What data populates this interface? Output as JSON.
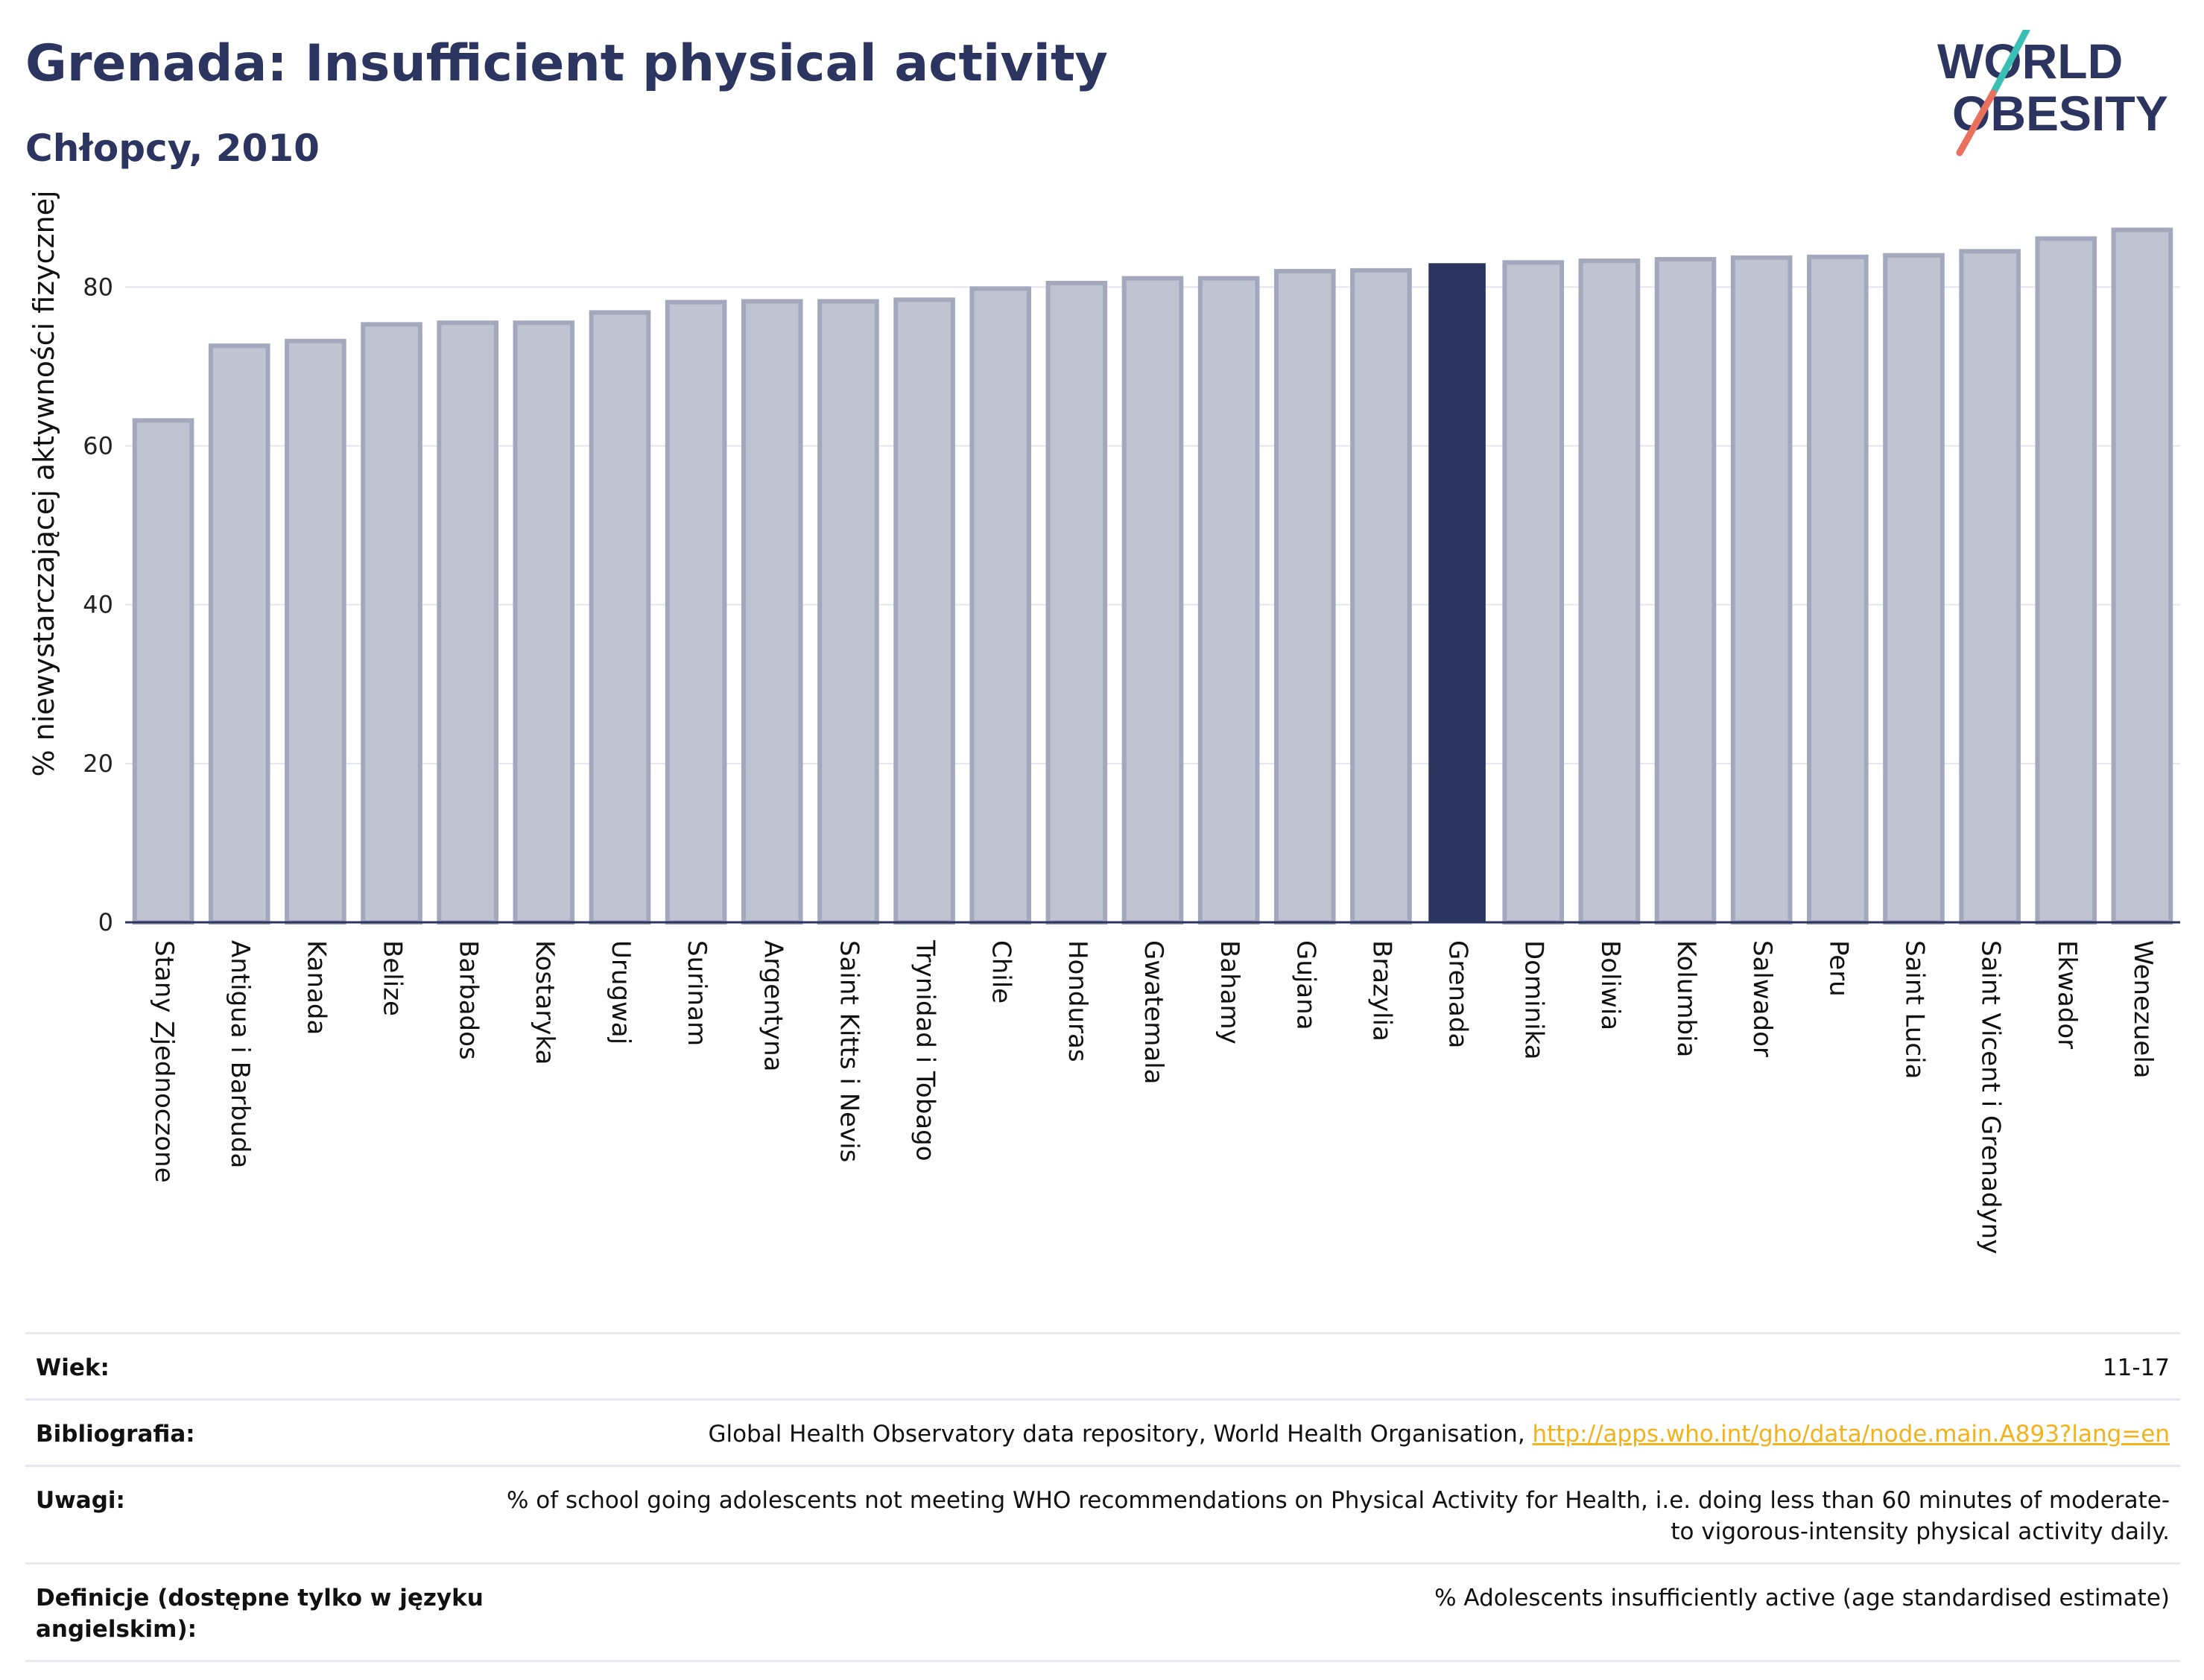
{
  "header": {
    "title": "Grenada: Insufficient physical activity",
    "subtitle": "Chłopcy, 2010"
  },
  "logo": {
    "line1": "WORLD",
    "line2": "OBESITY",
    "colors": {
      "text": "#2b3560",
      "slash_teal": "#3bbfb4",
      "slash_coral": "#e8705d"
    }
  },
  "colors": {
    "bar_default_fill": "#c0c3d1",
    "bar_default_stroke": "#a3a8bd",
    "bar_highlight": "#2b3560",
    "grid": "#e4e6ee",
    "axis": "#2b3560"
  },
  "chart_data": {
    "type": "bar",
    "title": "Grenada: Insufficient physical activity",
    "subtitle": "Chłopcy, 2010",
    "xlabel": "",
    "ylabel": "% niewystarczającej aktywności fizycznej",
    "ylim": [
      0,
      88
    ],
    "yticks": [
      0,
      20,
      40,
      60,
      80
    ],
    "grid": true,
    "highlight": "Grenada",
    "categories": [
      "Stany Zjednoczone",
      "Antigua i Barbuda",
      "Kanada",
      "Belize",
      "Barbados",
      "Kostaryka",
      "Urugwaj",
      "Surinam",
      "Argentyna",
      "Saint Kitts i Nevis",
      "Trynidad i Tobago",
      "Chile",
      "Honduras",
      "Gwatemala",
      "Bahamy",
      "Gujana",
      "Brazylia",
      "Grenada",
      "Dominika",
      "Boliwia",
      "Kolumbia",
      "Salwador",
      "Peru",
      "Saint Lucia",
      "Saint Vicent i Grenadyny",
      "Ekwador",
      "Wenezuela"
    ],
    "values": [
      63.2,
      72.6,
      73.2,
      75.3,
      75.5,
      75.5,
      76.8,
      78.1,
      78.2,
      78.2,
      78.4,
      79.8,
      80.5,
      81.1,
      81.1,
      82.0,
      82.1,
      83.0,
      83.1,
      83.3,
      83.5,
      83.7,
      83.8,
      84.0,
      84.5,
      86.1,
      87.2
    ]
  },
  "meta": {
    "rows": [
      {
        "label": "Wiek:",
        "value": "11-17"
      },
      {
        "label": "Bibliografia:",
        "value": "Global Health Observatory data repository, World Health Organisation,",
        "link": "http://apps.who.int/gho/data/node.main.A893?lang=en"
      },
      {
        "label": "Uwagi:",
        "value": "% of school going adolescents not meeting WHO recommendations on Physical Activity for Health, i.e. doing less than 60 minutes of moderate- to vigorous-intensity physical activity daily."
      },
      {
        "label": "Definicje (dostępne tylko w języku angielskim):",
        "value": "% Adolescents insufficiently active (age standardised estimate)"
      }
    ]
  }
}
